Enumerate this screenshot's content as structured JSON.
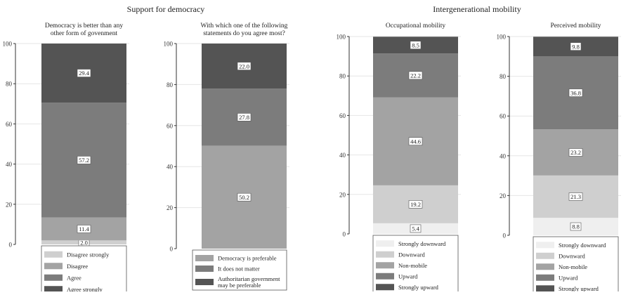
{
  "group_titles": {
    "democracy": "Support for democracy",
    "mobility": "Intergenerational mobility"
  },
  "palettes": {
    "democracy4": [
      "#cfcfcf",
      "#a3a3a3",
      "#7c7c7c",
      "#545454"
    ],
    "democracy3": [
      "#a3a3a3",
      "#7c7c7c",
      "#545454"
    ],
    "mobility5": [
      "#efefef",
      "#cfcfcf",
      "#a3a3a3",
      "#7c7c7c",
      "#545454"
    ]
  },
  "chart_data": [
    {
      "type": "bar",
      "stacked": true,
      "title": "Democracy is better than any other form of govenment",
      "title_lines": [
        "Democracy is better than any",
        "other form of govenment"
      ],
      "ylim": [
        0,
        100
      ],
      "yticks": [
        "0",
        "20",
        "40",
        "60",
        "80",
        "100"
      ],
      "grid": true,
      "legend": "below",
      "series": [
        {
          "name": "Disagree strongly",
          "value": 2.0,
          "label": "2.0"
        },
        {
          "name": "Disagree",
          "value": 11.4,
          "label": "11.4"
        },
        {
          "name": "Agree",
          "value": 57.2,
          "label": "57.2"
        },
        {
          "name": "Agree strongly",
          "value": 29.4,
          "label": "29.4"
        }
      ]
    },
    {
      "type": "bar",
      "stacked": true,
      "title": "With which one of the following statements do you agree most?",
      "title_lines": [
        "With which one of the following",
        "statements do you agree most?"
      ],
      "ylim": [
        0,
        100
      ],
      "yticks": [
        "0",
        "20",
        "40",
        "60",
        "80",
        "100"
      ],
      "grid": true,
      "legend": "below",
      "series": [
        {
          "name": "Democracy is preferable",
          "value": 50.2,
          "label": "50.2"
        },
        {
          "name": "It does not matter",
          "value": 27.8,
          "label": "27.8"
        },
        {
          "name": "Authoritarian government may be preferable",
          "name_lines": [
            "Authoritarian government",
            "may be preferable"
          ],
          "value": 22.0,
          "label": "22.0"
        }
      ]
    },
    {
      "type": "bar",
      "stacked": true,
      "title": "Occupational mobility",
      "title_lines": [
        "Occupational mobility"
      ],
      "ylim": [
        0,
        100
      ],
      "yticks": [
        "0",
        "20",
        "40",
        "60",
        "80",
        "100"
      ],
      "grid": true,
      "legend": "below",
      "series": [
        {
          "name": "Strongly downward",
          "value": 5.4,
          "label": "5.4"
        },
        {
          "name": "Downward",
          "value": 19.2,
          "label": "19.2"
        },
        {
          "name": "Non-mobile",
          "value": 44.6,
          "label": "44.6"
        },
        {
          "name": "Upward",
          "value": 22.2,
          "label": "22.2"
        },
        {
          "name": "Strongly upward",
          "value": 8.5,
          "label": "8.5"
        }
      ]
    },
    {
      "type": "bar",
      "stacked": true,
      "title": "Perceived mobility",
      "title_lines": [
        "Perceived mobility"
      ],
      "ylim": [
        0,
        100
      ],
      "yticks": [
        "0",
        "20",
        "40",
        "60",
        "80",
        "100"
      ],
      "grid": true,
      "legend": "below",
      "series": [
        {
          "name": "Strongly downward",
          "value": 8.8,
          "label": "8.8"
        },
        {
          "name": "Downward",
          "value": 21.3,
          "label": "21.3"
        },
        {
          "name": "Non-mobile",
          "value": 23.2,
          "label": "23.2"
        },
        {
          "name": "Upward",
          "value": 36.8,
          "label": "36.8"
        },
        {
          "name": "Strongly upward",
          "value": 9.8,
          "label": "9.8"
        }
      ]
    }
  ]
}
